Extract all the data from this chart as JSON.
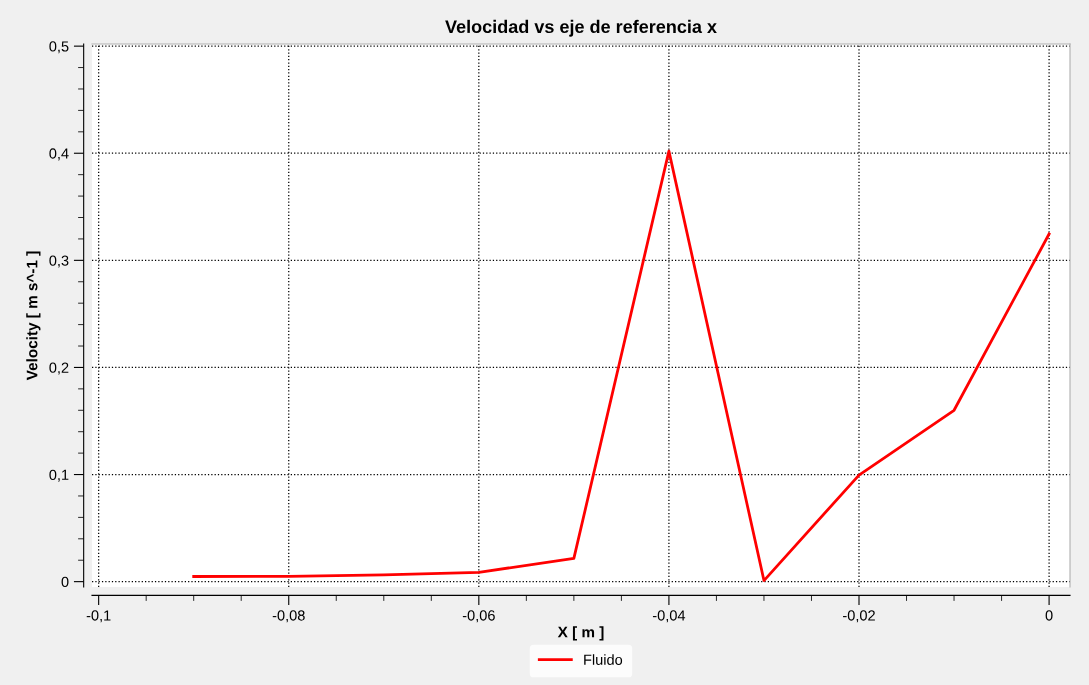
{
  "chart_data": {
    "type": "line",
    "title": "Velocidad vs eje de referencia x",
    "xlabel": "X [ m ]",
    "ylabel": "Velocity [ m s^-1 ]",
    "x": [
      -0.09,
      -0.08,
      -0.07,
      -0.06,
      -0.05,
      -0.04,
      -0.03,
      -0.02,
      -0.01,
      0
    ],
    "series": [
      {
        "name": "Fluido",
        "color": "#ff0000",
        "values": [
          0.0048,
          0.005,
          0.0064,
          0.0087,
          0.0217,
          0.402,
          0.001,
          0.0995,
          0.16,
          0.3246
        ]
      }
    ],
    "xlim": [
      -0.1007,
      0.0022
    ],
    "xticks": [
      {
        "value": -0.1,
        "label": "-0,1"
      },
      {
        "value": -0.08,
        "label": "-0,08"
      },
      {
        "value": -0.06,
        "label": "-0,06"
      },
      {
        "value": -0.04,
        "label": "-0,04"
      },
      {
        "value": -0.02,
        "label": "-0,02"
      },
      {
        "value": 0,
        "label": "0"
      }
    ],
    "ylim": [
      -0.005,
      0.502
    ],
    "yticks": [
      0,
      {
        "value": 0.1,
        "label": "0,1"
      },
      {
        "value": 0.2,
        "label": "0,2"
      },
      {
        "value": 0.3,
        "label": "0,3"
      },
      {
        "value": 0.4,
        "label": "0,4"
      },
      {
        "value": 0.5,
        "label": "0,5"
      }
    ],
    "grid": true,
    "legend": "bottom",
    "marker": "none",
    "line_style": "solid"
  }
}
